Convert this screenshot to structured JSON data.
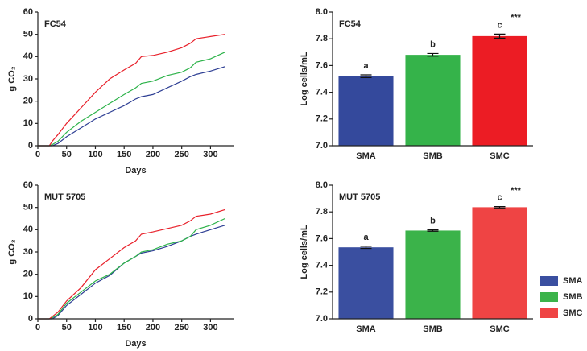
{
  "chart_data": [
    {
      "type": "line",
      "title": "FC54",
      "x_label": "Days",
      "y_label": "g CO₂",
      "x": [
        0,
        20,
        25,
        35,
        50,
        75,
        100,
        125,
        150,
        170,
        180,
        200,
        225,
        250,
        265,
        275,
        300,
        325
      ],
      "xlim": [
        0,
        340
      ],
      "xticks": [
        0,
        50,
        100,
        150,
        200,
        250,
        300
      ],
      "ylim": [
        0,
        60
      ],
      "yticks": [
        0,
        10,
        20,
        30,
        40,
        50,
        60
      ],
      "series": [
        {
          "color": "#2e3f94",
          "values": [
            0,
            0,
            0,
            1,
            4,
            8,
            12,
            15,
            18,
            21,
            22,
            23,
            26,
            29,
            31,
            32,
            33.5,
            35.5
          ]
        },
        {
          "color": "#2db34a",
          "values": [
            0,
            0,
            0.5,
            2,
            6,
            11,
            15,
            19,
            23,
            26,
            28,
            29,
            31.5,
            33,
            35,
            37.5,
            39,
            42
          ]
        },
        {
          "color": "#e8202a",
          "values": [
            0,
            0,
            2,
            5,
            10,
            17,
            24,
            30,
            34,
            37,
            40,
            40.5,
            42,
            44,
            46,
            48,
            49,
            50
          ]
        }
      ]
    },
    {
      "type": "bar",
      "title": "FC54",
      "y_label": "Log cells/mL",
      "categories": [
        "SMA",
        "SMB",
        "SMC"
      ],
      "values": [
        7.52,
        7.68,
        7.82
      ],
      "errors": [
        0.01,
        0.01,
        0.015
      ],
      "colors": [
        "#34499c",
        "#35b34a",
        "#ec1c24"
      ],
      "annotations": [
        "a",
        "b",
        "c"
      ],
      "significance": "***",
      "ylim": [
        7.0,
        8.0
      ],
      "yticks": [
        {
          "value": 7.0,
          "label": "7.0"
        },
        {
          "value": 7.2,
          "label": "7.2"
        },
        {
          "value": 7.4,
          "label": "7.4"
        },
        {
          "value": 7.6,
          "label": "7.6"
        },
        {
          "value": 7.8,
          "label": "7.8"
        },
        {
          "value": 8.0,
          "label": "8.0"
        }
      ]
    },
    {
      "type": "line",
      "title": "MUT 5705",
      "x_label": "Days",
      "y_label": "g CO₂",
      "x": [
        0,
        20,
        25,
        35,
        50,
        75,
        100,
        125,
        150,
        170,
        180,
        200,
        225,
        250,
        265,
        275,
        300,
        325
      ],
      "xlim": [
        0,
        340
      ],
      "xticks": [
        0,
        50,
        100,
        150,
        200,
        250,
        300
      ],
      "ylim": [
        0,
        60
      ],
      "yticks": [
        0,
        10,
        20,
        30,
        40,
        50,
        60
      ],
      "series": [
        {
          "color": "#2e3f94",
          "values": [
            0,
            0,
            0,
            1.5,
            6,
            11,
            16,
            19.5,
            25,
            28,
            29.5,
            30.5,
            32.5,
            35,
            37,
            38,
            40,
            42
          ]
        },
        {
          "color": "#2db34a",
          "values": [
            0,
            0,
            0.5,
            2,
            7,
            12,
            17,
            20,
            25,
            28,
            30,
            31,
            33.5,
            35,
            37,
            40,
            42,
            45
          ]
        },
        {
          "color": "#e8202a",
          "values": [
            0,
            0,
            1,
            3,
            8,
            14,
            22,
            27,
            32,
            35,
            38,
            39,
            40.5,
            42,
            44,
            46,
            47,
            49
          ]
        }
      ]
    },
    {
      "type": "bar",
      "title": "MUT 5705",
      "y_label": "Log cells/mL",
      "categories": [
        "SMA",
        "SMB",
        "SMC"
      ],
      "values": [
        7.535,
        7.66,
        7.835
      ],
      "errors": [
        0.008,
        0.005,
        0.005
      ],
      "colors": [
        "#3a4fa0",
        "#3bb34a",
        "#ef4444"
      ],
      "annotations": [
        "a",
        "b",
        "c"
      ],
      "significance": "***",
      "legend": "right",
      "ylim": [
        7.0,
        8.0
      ],
      "yticks": [
        {
          "value": 7.0,
          "label": "7.0"
        },
        {
          "value": 7.2,
          "label": "7.2"
        },
        {
          "value": 7.4,
          "label": "7.4"
        },
        {
          "value": 7.6,
          "label": "7.6"
        },
        {
          "value": 7.8,
          "label": "7.8"
        },
        {
          "value": 8.0,
          "label": "8.0"
        }
      ]
    }
  ]
}
